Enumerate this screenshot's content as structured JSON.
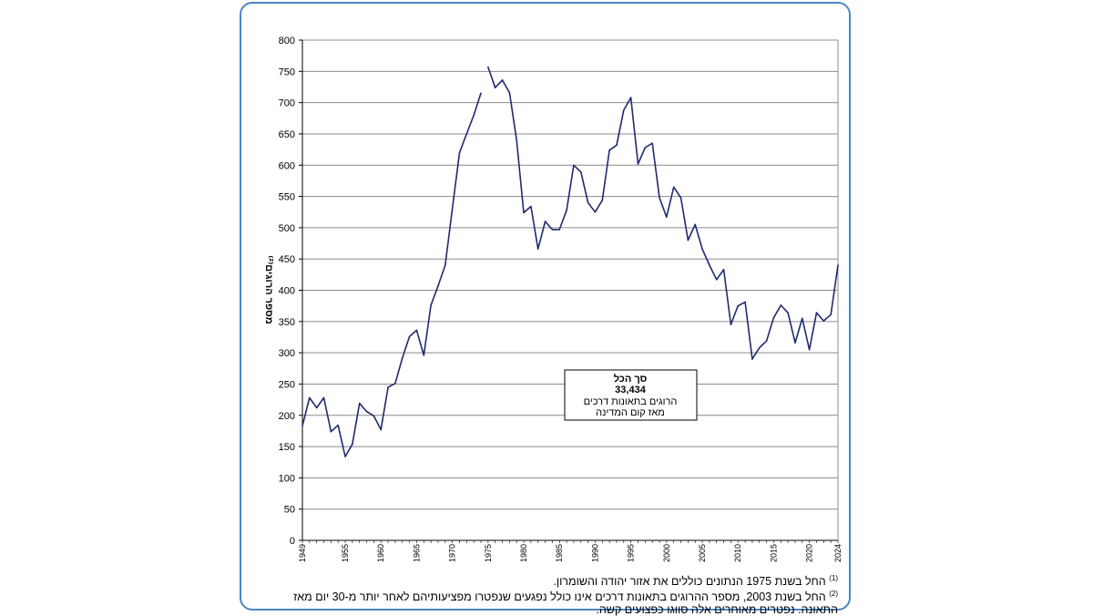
{
  "chart_data": {
    "type": "line",
    "title": "",
    "ylabel": "מספר הרוגים⁽²⁾",
    "xlabel": "",
    "ylim": [
      0,
      800
    ],
    "xlim": [
      1949,
      2024
    ],
    "yticks": [
      0,
      50,
      100,
      150,
      200,
      250,
      300,
      350,
      400,
      450,
      500,
      550,
      600,
      650,
      700,
      750,
      800
    ],
    "xticks": [
      1949,
      1955,
      1960,
      1965,
      1970,
      1975,
      1980,
      1985,
      1990,
      1995,
      2000,
      2005,
      2010,
      2015,
      2020,
      2024
    ],
    "grid": "horizontal",
    "series": [
      {
        "segment": "1949-1974",
        "x": [
          1949,
          1950,
          1951,
          1952,
          1953,
          1954,
          1955,
          1956,
          1957,
          1958,
          1959,
          1960,
          1961,
          1962,
          1963,
          1964,
          1965,
          1966,
          1967,
          1968,
          1969,
          1970,
          1971,
          1972,
          1973,
          1974
        ],
        "values": [
          183,
          228,
          212,
          228,
          174,
          184,
          134,
          154,
          219,
          206,
          199,
          177,
          245,
          251,
          292,
          326,
          336,
          296,
          376,
          407,
          440,
          530,
          620,
          650,
          680,
          715
        ]
      },
      {
        "segment": "1975-2024",
        "x": [
          1975,
          1976,
          1977,
          1978,
          1979,
          1980,
          1981,
          1982,
          1983,
          1984,
          1985,
          1986,
          1987,
          1988,
          1989,
          1990,
          1991,
          1992,
          1993,
          1994,
          1995,
          1996,
          1997,
          1998,
          1999,
          2000,
          2001,
          2002,
          2003,
          2004,
          2005,
          2006,
          2007,
          2008,
          2009,
          2010,
          2011,
          2012,
          2013,
          2014,
          2015,
          2016,
          2017,
          2018,
          2019,
          2020,
          2021,
          2022,
          2023,
          2024
        ],
        "values": [
          757,
          724,
          736,
          716,
          640,
          524,
          534,
          466,
          510,
          497,
          497,
          528,
          600,
          589,
          540,
          525,
          544,
          624,
          632,
          688,
          708,
          602,
          628,
          635,
          548,
          517,
          565,
          548,
          480,
          505,
          466,
          440,
          417,
          433,
          345,
          375,
          381,
          290,
          308,
          319,
          356,
          376,
          364,
          316,
          355,
          305,
          364,
          351,
          361,
          440
        ]
      }
    ],
    "annotation": {
      "line1": "סך הכל",
      "line2": "33,434",
      "line3": "הרוגים בתאונות דרכים",
      "line4": "מאז קום המדינה"
    }
  },
  "footnotes": {
    "note1": "החל בשנת 1975 הנתונים כוללים את אזור יהודה והשומרון.",
    "note2": "החל בשנת 2003, מספר ההרוגים בתאונות דרכים אינו כולל נפגעים שנפטרו מפציעותיהם לאחר יותר מ-30 יום מאז התאונה. נפטרים מאוחרים אלה סווגו כפצועים קשה."
  },
  "colors": {
    "line": "#1f2a6e",
    "frame": "#4a86c8",
    "grid": "#8c8c8c"
  }
}
